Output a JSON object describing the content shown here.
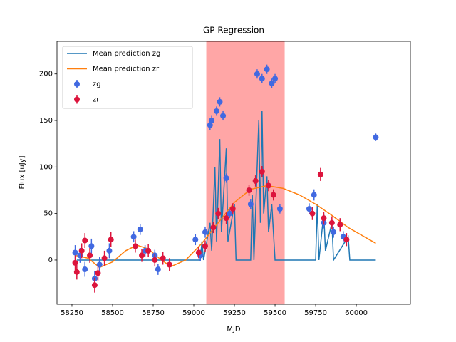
{
  "chart_data": {
    "type": "line",
    "title": "GP Regression",
    "x_label": "MJD",
    "y_label": "Flux [uJy]",
    "xlim": [
      58158,
      60333
    ],
    "ylim": [
      -47.5,
      235
    ],
    "xticks": [
      58250,
      58500,
      58750,
      59000,
      59250,
      59500,
      59750,
      60000
    ],
    "yticks": [
      0,
      50,
      100,
      150,
      200
    ],
    "legend": "upper left",
    "span": {
      "x": [
        59079,
        59557
      ],
      "color": "#ff0000"
    },
    "series": [
      {
        "name": "Mean prediction zg",
        "type": "line",
        "color": "#1f77b4",
        "x": [
          58280,
          58700,
          59000,
          59040,
          59050,
          59060,
          59100,
          59110,
          59130,
          59140,
          59160,
          59170,
          59200,
          59210,
          59250,
          59260,
          59300,
          59350,
          59360,
          59370,
          59400,
          59410,
          59420,
          59430,
          59450,
          59460,
          59480,
          59500,
          59750,
          59760,
          59770,
          59800,
          59810,
          59850,
          59860,
          59950,
          59960,
          60120
        ],
        "values": [
          0,
          0,
          0,
          0,
          20,
          0,
          40,
          10,
          100,
          20,
          130,
          30,
          120,
          20,
          60,
          0,
          0,
          0,
          70,
          0,
          150,
          40,
          160,
          50,
          90,
          30,
          60,
          0,
          0,
          60,
          0,
          50,
          10,
          40,
          0,
          25,
          0,
          0
        ]
      },
      {
        "name": "Mean prediction zr",
        "type": "line",
        "color": "#ff7f0e",
        "x": [
          58270,
          58350,
          58420,
          58500,
          58580,
          58650,
          58720,
          58800,
          58860,
          58950,
          59050,
          59150,
          59250,
          59350,
          59450,
          59550,
          59650,
          59750,
          59850,
          59950,
          60050,
          60120
        ],
        "values": [
          5,
          2,
          -8,
          -2,
          10,
          16,
          12,
          0,
          -7,
          0,
          18,
          40,
          62,
          76,
          80,
          77,
          70,
          60,
          48,
          35,
          25,
          18
        ]
      },
      {
        "name": "zg",
        "type": "errorbar",
        "color": "#4169e1",
        "x": [
          58270,
          58300,
          58330,
          58370,
          58390,
          58420,
          58480,
          58630,
          58670,
          58700,
          58760,
          58780,
          59010,
          59040,
          59070,
          59100,
          59110,
          59140,
          59160,
          59180,
          59200,
          59220,
          59350,
          59390,
          59420,
          59450,
          59480,
          59500,
          59530,
          59710,
          59740,
          59800,
          59860,
          59920,
          60120
        ],
        "values": [
          8,
          5,
          -10,
          15,
          -20,
          -5,
          10,
          25,
          33,
          10,
          5,
          -10,
          22,
          5,
          30,
          145,
          150,
          160,
          170,
          155,
          88,
          50,
          60,
          200,
          195,
          205,
          190,
          195,
          55,
          55,
          70,
          40,
          30,
          25,
          132
        ],
        "errors": [
          8,
          8,
          8,
          8,
          8,
          8,
          8,
          6,
          6,
          6,
          6,
          6,
          6,
          6,
          6,
          5,
          5,
          5,
          5,
          5,
          5,
          5,
          5,
          5,
          5,
          5,
          5,
          5,
          5,
          6,
          6,
          6,
          6,
          6,
          4
        ]
      },
      {
        "name": "zr",
        "type": "errorbar",
        "color": "#dc143c",
        "x": [
          58270,
          58280,
          58310,
          58330,
          58360,
          58390,
          58410,
          58450,
          58490,
          58640,
          58680,
          58720,
          58760,
          58810,
          58850,
          59030,
          59070,
          59120,
          59150,
          59200,
          59240,
          59340,
          59380,
          59420,
          59460,
          59490,
          59730,
          59780,
          59800,
          59850,
          59900,
          59940
        ],
        "values": [
          -3,
          -13,
          10,
          21,
          5,
          -27,
          -14,
          2,
          22,
          15,
          5,
          10,
          0,
          2,
          -5,
          8,
          15,
          35,
          50,
          45,
          55,
          75,
          85,
          95,
          80,
          70,
          50,
          92,
          45,
          40,
          38,
          22
        ],
        "errors": [
          8,
          8,
          8,
          8,
          8,
          8,
          8,
          8,
          8,
          7,
          7,
          7,
          7,
          7,
          7,
          6,
          6,
          6,
          6,
          6,
          6,
          6,
          6,
          6,
          6,
          6,
          7,
          7,
          7,
          7,
          7,
          7
        ]
      }
    ]
  }
}
